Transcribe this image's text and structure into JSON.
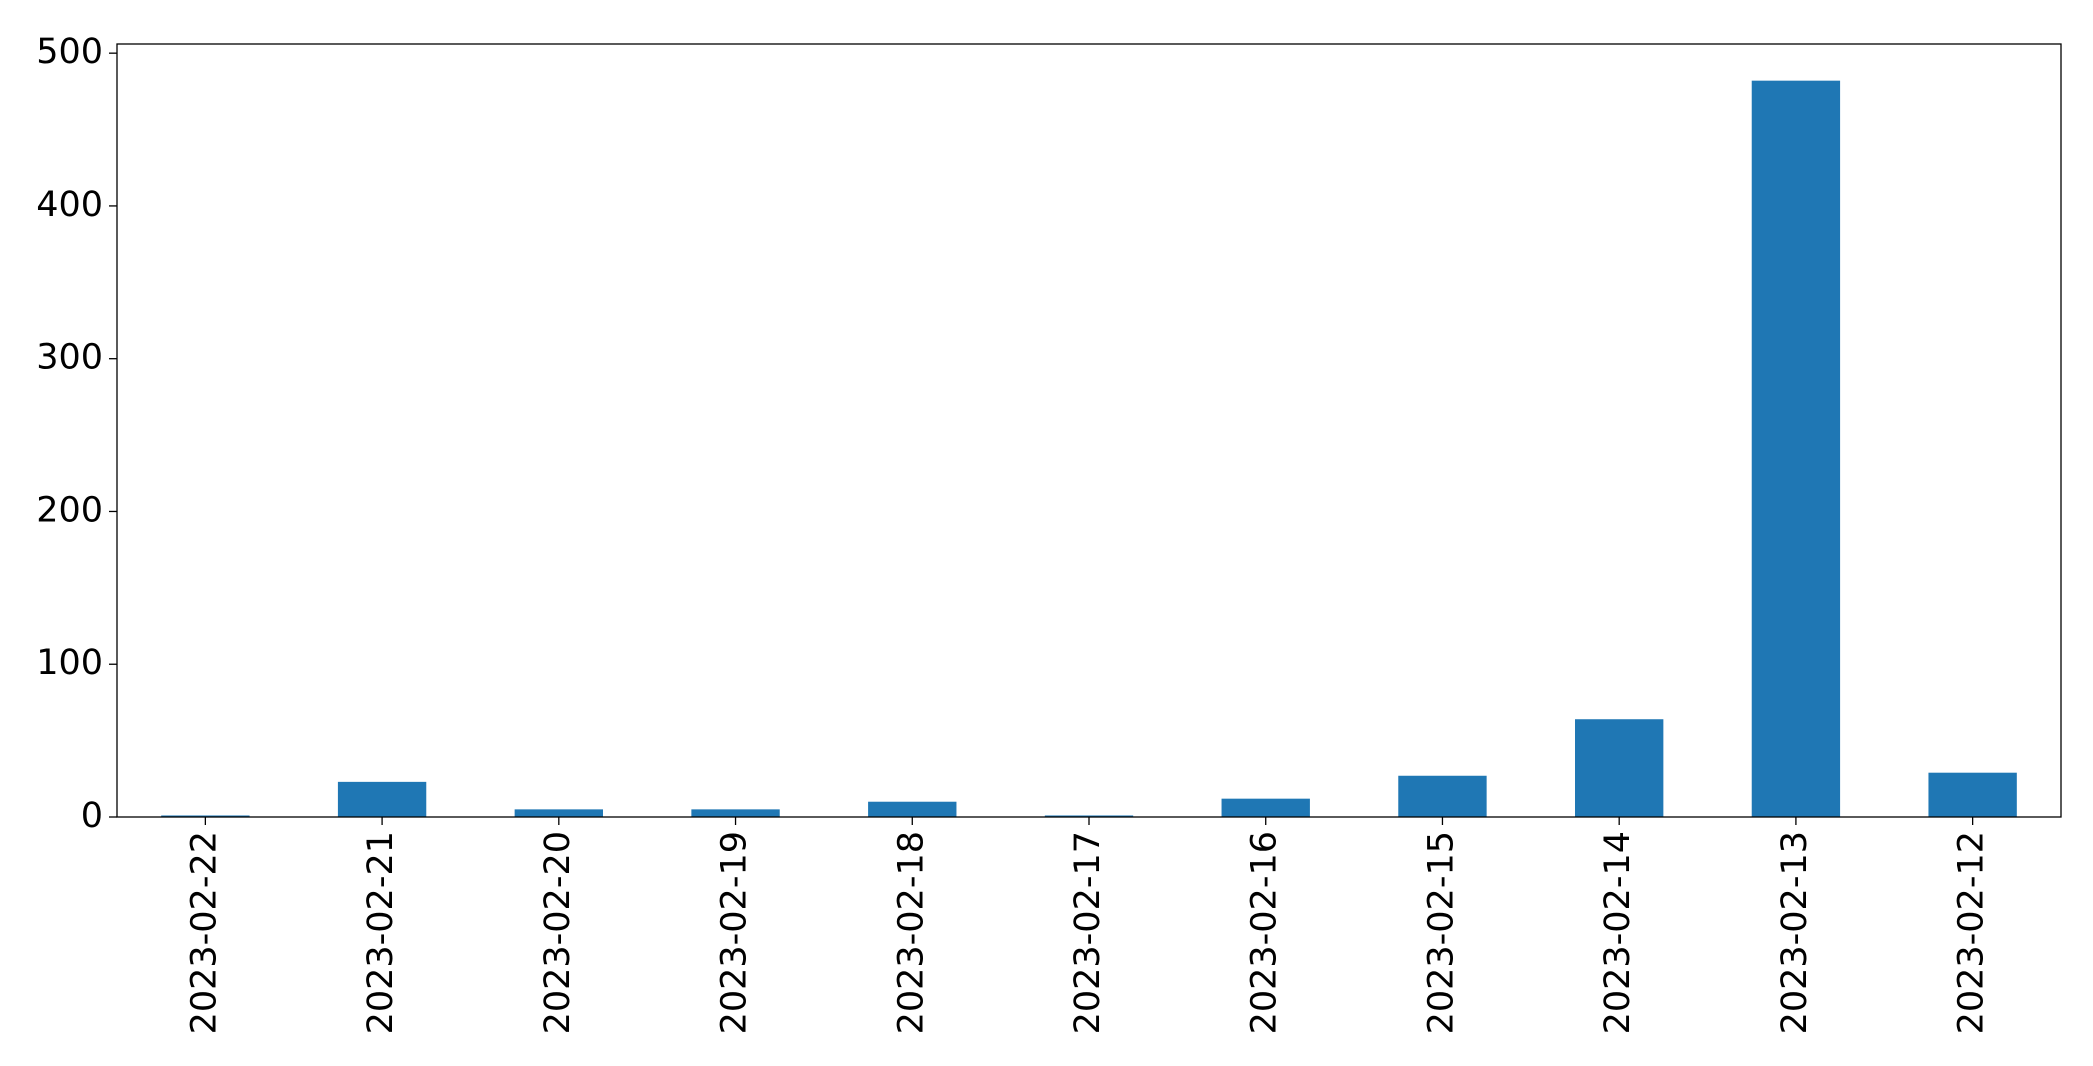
{
  "chart_data": {
    "type": "bar",
    "categories": [
      "2023-02-22",
      "2023-02-21",
      "2023-02-20",
      "2023-02-19",
      "2023-02-18",
      "2023-02-17",
      "2023-02-16",
      "2023-02-15",
      "2023-02-14",
      "2023-02-13",
      "2023-02-12"
    ],
    "values": [
      1,
      23,
      5,
      5,
      10,
      1,
      12,
      27,
      64,
      482,
      29
    ],
    "color": "#1f77b4",
    "ylim": [
      0,
      506
    ],
    "yticks": [
      0,
      100,
      200,
      300,
      400,
      500
    ],
    "grid": false
  }
}
